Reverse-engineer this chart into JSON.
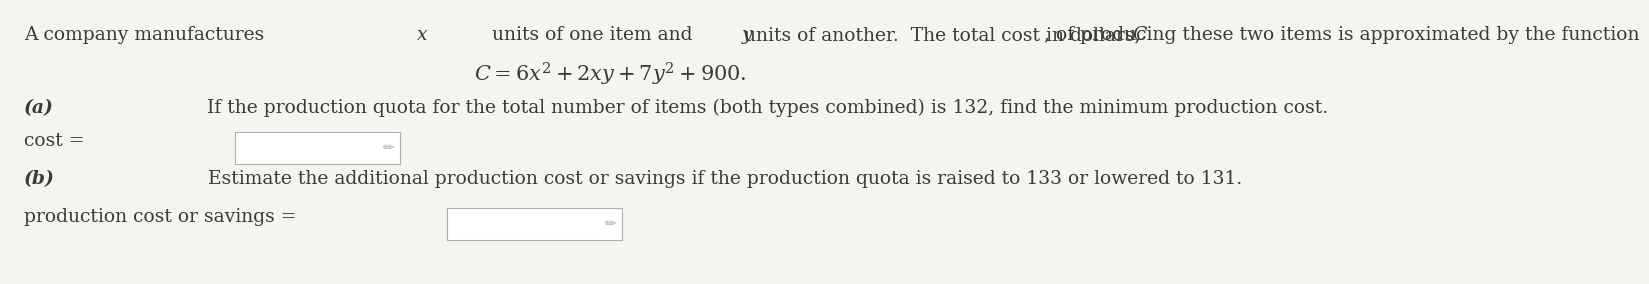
{
  "bg_color": "#f5f5f0",
  "text_color": "#3a3a3a",
  "formula": "$C = 6x^2 + 2xy + 7y^2 + 900.$",
  "part_a_bold": "(a)",
  "part_a_text": " If the production quota for the total number of items (both types combined) is 132, find the minimum production cost.",
  "cost_label": "cost =",
  "part_b_bold": "(b)",
  "part_b_text": " Estimate the additional production cost or savings if the production quota is raised to 133 or lowered to 131.",
  "savings_label": "production cost or savings =",
  "box_color": "#ffffff",
  "box_edge_color": "#b0b0b0",
  "font_size_main": 13.5,
  "font_size_formula": 15,
  "font_family": "DejaVu Serif"
}
